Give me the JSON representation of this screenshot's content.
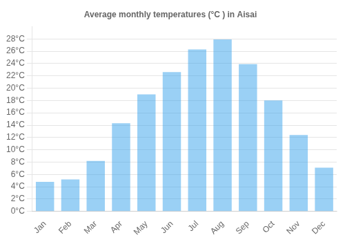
{
  "chart_data": {
    "type": "bar",
    "title": "Average monthly temperatures (°C ) in Aisai",
    "categories": [
      "Jan",
      "Feb",
      "Mar",
      "Apr",
      "May",
      "Jun",
      "Jul",
      "Aug",
      "Sep",
      "Oct",
      "Nov",
      "Dec"
    ],
    "values": [
      4.8,
      5.2,
      8.2,
      14.3,
      19.0,
      22.6,
      26.3,
      27.9,
      23.9,
      18.0,
      12.4,
      7.1
    ],
    "ylim": [
      0,
      30
    ],
    "yticks": [
      {
        "value": 0,
        "label": "0°C"
      },
      {
        "value": 2,
        "label": "2°C"
      },
      {
        "value": 4,
        "label": "4°C"
      },
      {
        "value": 6,
        "label": "6°C"
      },
      {
        "value": 8,
        "label": "8°C"
      },
      {
        "value": 10,
        "label": "10°C"
      },
      {
        "value": 12,
        "label": "12°C"
      },
      {
        "value": 14,
        "label": "14°C"
      },
      {
        "value": 16,
        "label": "16°C"
      },
      {
        "value": 18,
        "label": "18°C"
      },
      {
        "value": 20,
        "label": "20°C"
      },
      {
        "value": 22,
        "label": "22°C"
      },
      {
        "value": 24,
        "label": "24°C"
      },
      {
        "value": 26,
        "label": "26°C"
      },
      {
        "value": 28,
        "label": "28°C"
      }
    ],
    "grid": true
  }
}
